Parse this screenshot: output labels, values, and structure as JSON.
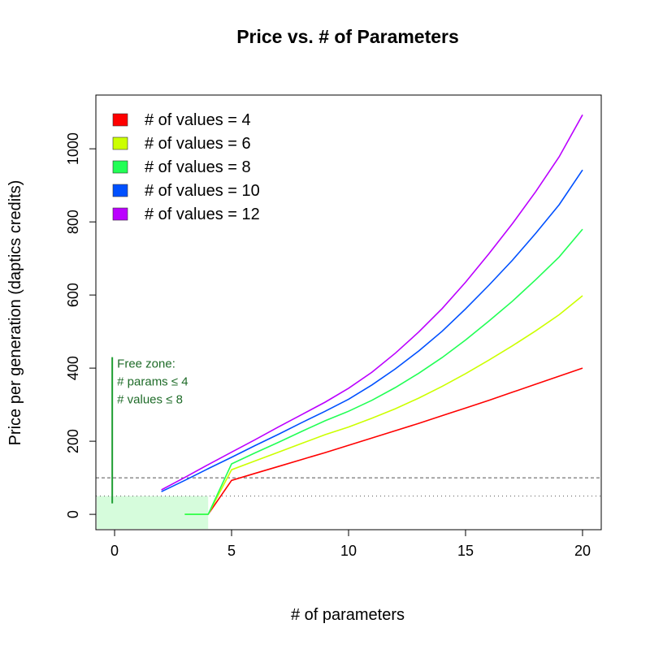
{
  "chart_data": {
    "type": "line",
    "title": "Price vs. # of Parameters",
    "xlabel": "# of parameters",
    "ylabel": "Price per generation (daptics credits)",
    "xlim": [
      -0.8,
      20.8
    ],
    "ylim": [
      -42,
      1147
    ],
    "xticks": [
      0,
      5,
      10,
      15,
      20
    ],
    "yticks": [
      0,
      200,
      400,
      600,
      800,
      1000
    ],
    "grid": false,
    "legend_position": "top-left",
    "series": [
      {
        "name": "# of values = 4",
        "color": "#FF0000",
        "x": [
          4,
          5,
          6,
          7,
          8,
          9,
          10,
          11,
          12,
          13,
          14,
          15,
          16,
          17,
          18,
          19,
          20
        ],
        "values": [
          0,
          93,
          112,
          131,
          150,
          169,
          189,
          209,
          229,
          249,
          270,
          291,
          312,
          334,
          356,
          378,
          400
        ]
      },
      {
        "name": "# of values = 6",
        "color": "#CCFF00",
        "x": [
          3,
          4,
          5,
          6,
          7,
          8,
          9,
          10,
          11,
          12,
          13,
          14,
          15,
          16,
          17,
          18,
          19,
          20
        ],
        "values": [
          0,
          0,
          122,
          146,
          170,
          194,
          218,
          239,
          263,
          289,
          318,
          350,
          385,
          422,
          461,
          502,
          546,
          598
        ]
      },
      {
        "name": "# of values = 8",
        "color": "#22FF55",
        "x": [
          3,
          4,
          5,
          6,
          7,
          8,
          9,
          10,
          11,
          12,
          13,
          14,
          15,
          16,
          17,
          18,
          19,
          20
        ],
        "values": [
          0,
          0,
          138,
          168,
          197,
          227,
          256,
          282,
          312,
          347,
          386,
          429,
          477,
          529,
          583,
          642,
          704,
          780
        ]
      },
      {
        "name": "# of values = 10",
        "color": "#0050FF",
        "x": [
          2,
          3,
          4,
          5,
          6,
          7,
          8,
          9,
          10,
          11,
          12,
          13,
          14,
          15,
          16,
          17,
          18,
          19,
          20
        ],
        "values": [
          62,
          93,
          125,
          156,
          188,
          219,
          251,
          282,
          315,
          354,
          398,
          447,
          501,
          562,
          627,
          695,
          769,
          847,
          942
        ]
      },
      {
        "name": "# of values = 12",
        "color": "#BB00FF",
        "x": [
          2,
          3,
          4,
          5,
          6,
          7,
          8,
          9,
          10,
          11,
          12,
          13,
          14,
          15,
          16,
          17,
          18,
          19,
          20
        ],
        "values": [
          67,
          101,
          136,
          170,
          204,
          239,
          273,
          307,
          345,
          389,
          441,
          499,
          563,
          635,
          713,
          795,
          883,
          978,
          1093
        ]
      }
    ],
    "reference_lines": [
      {
        "y": 100,
        "style": "dashed",
        "color": "#555555"
      },
      {
        "y": 50,
        "style": "dotted",
        "color": "#555555"
      }
    ],
    "free_zone": {
      "x_max": 4,
      "y_max": 50,
      "fill": "#D6FCDC",
      "marker_x": -0.1,
      "marker_y": [
        30,
        430
      ],
      "marker_color": "#1E9E32",
      "annotation": [
        "Free zone:",
        "# params ≤ 4",
        "# values ≤ 8"
      ],
      "text_color": "#1E6B28"
    }
  }
}
